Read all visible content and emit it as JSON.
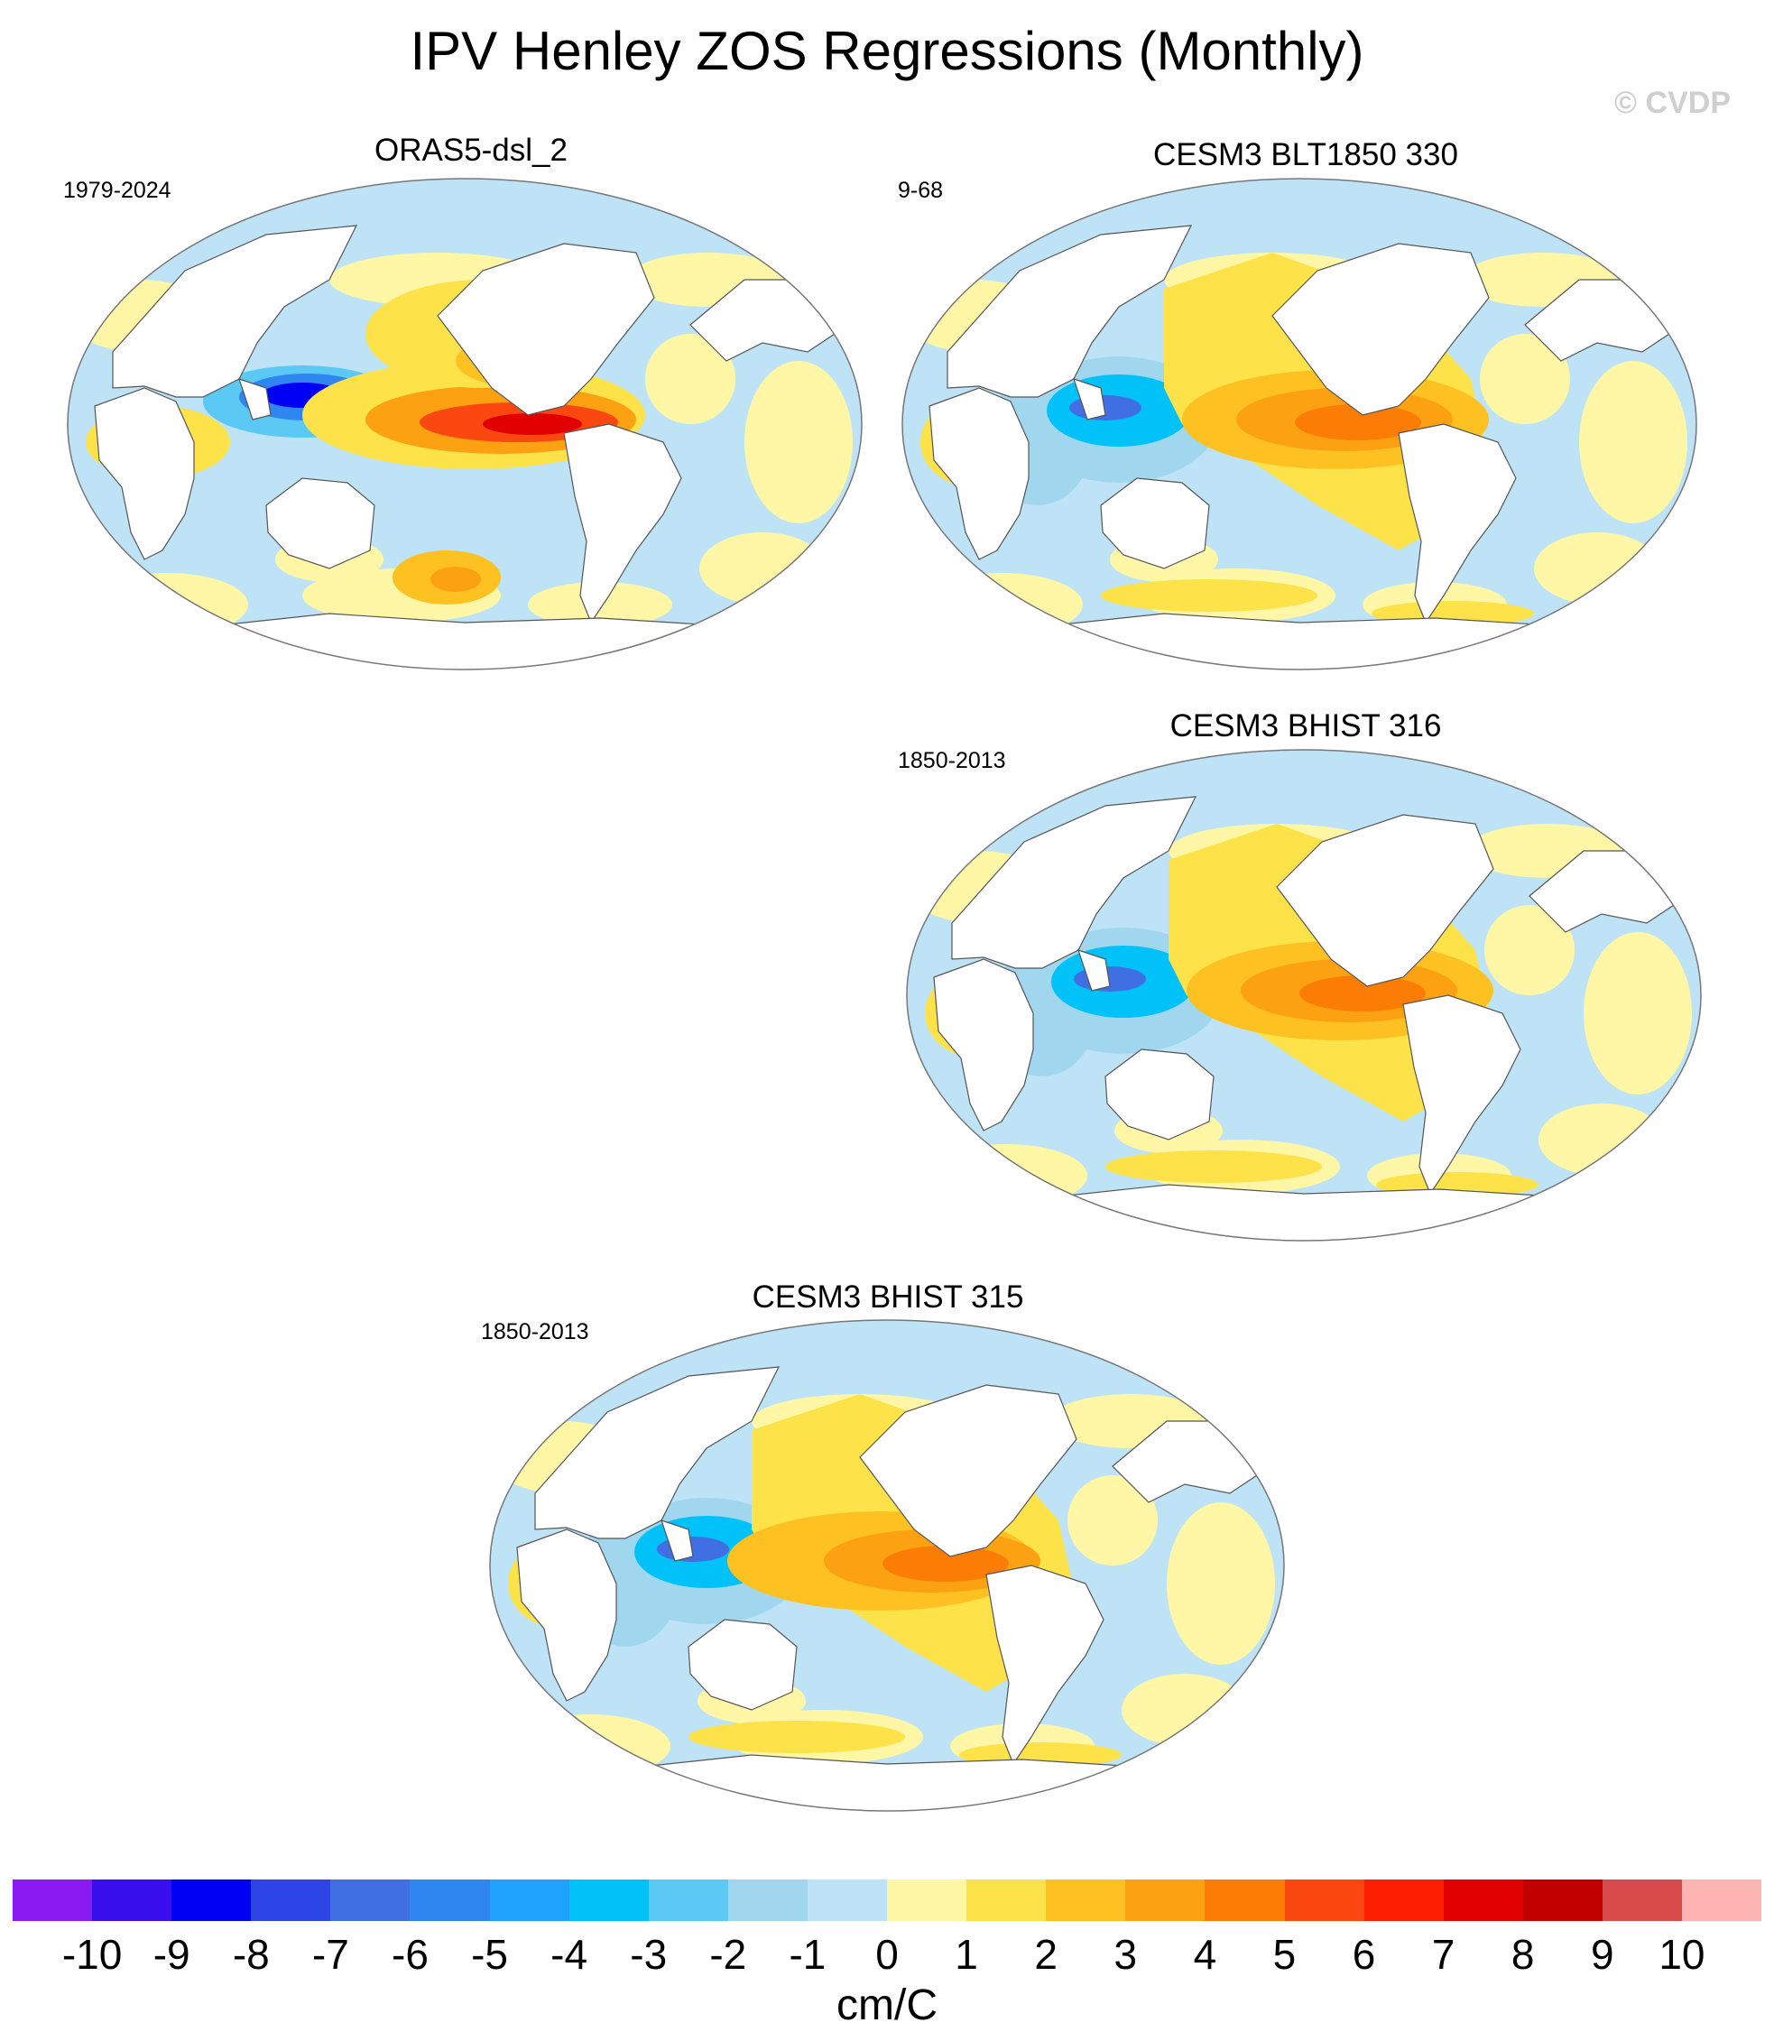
{
  "title": "IPV Henley ZOS Regressions (Monthly)",
  "copyright": "© CVDP",
  "panels": [
    {
      "title": "ORAS5-dsl_2",
      "period": "1979-2024",
      "variant": "obs"
    },
    {
      "title": "CESM3 BLT1850 330",
      "period": "9-68",
      "variant": "model"
    },
    {
      "title": "CESM3 BHIST 316",
      "period": "1850-2013",
      "variant": "model"
    },
    {
      "title": "CESM3 BHIST 315",
      "period": "1850-2013",
      "variant": "model2"
    }
  ],
  "colorbar": {
    "unit": "cm/C",
    "colors": [
      "#8b1af2",
      "#3a0fee",
      "#0000f5",
      "#2d45e6",
      "#3f6fe3",
      "#2f86f0",
      "#1ea2fb",
      "#00c1f8",
      "#5bc9f4",
      "#a0d7ef",
      "#bfe3f6",
      "#fff7a6",
      "#fde24a",
      "#fdc221",
      "#fca212",
      "#fb7d06",
      "#fb4710",
      "#fe1e00",
      "#e10000",
      "#c30000",
      "#d94a4a",
      "#ffb4b4"
    ],
    "labels": [
      "-10",
      "-9",
      "-8",
      "-7",
      "-6",
      "-5",
      "-4",
      "-3",
      "-2",
      "-1",
      "0",
      "1",
      "2",
      "3",
      "4",
      "5",
      "6",
      "7",
      "8",
      "9",
      "10"
    ]
  }
}
